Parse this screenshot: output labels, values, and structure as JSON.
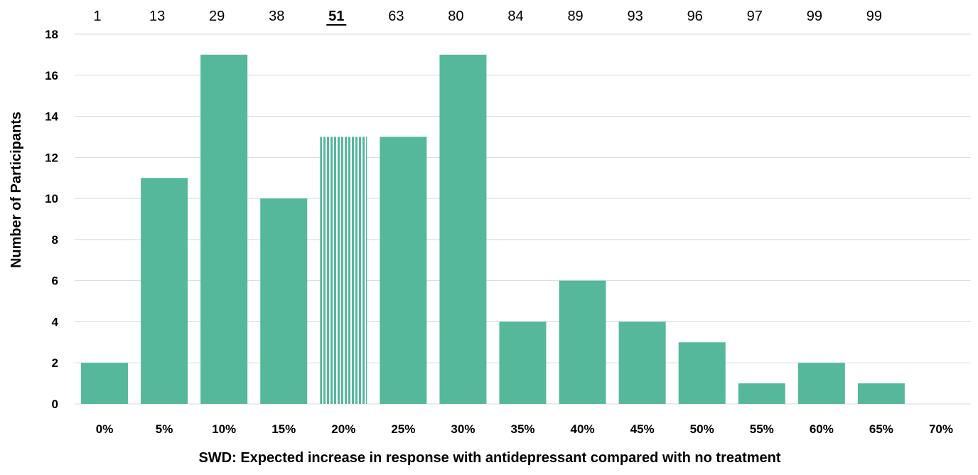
{
  "chart_data": {
    "type": "bar",
    "categories": [
      "0%",
      "5%",
      "10%",
      "15%",
      "20%",
      "25%",
      "30%",
      "35%",
      "40%",
      "45%",
      "50%",
      "55%",
      "60%",
      "65%",
      "70%"
    ],
    "values": [
      2,
      11,
      17,
      10,
      13,
      13,
      17,
      4,
      6,
      4,
      3,
      1,
      2,
      1,
      0
    ],
    "top_labels": [
      "1",
      "13",
      "29",
      "38",
      "51",
      "63",
      "80",
      "84",
      "89",
      "93",
      "96",
      "97",
      "99",
      "99"
    ],
    "highlight_index": 4,
    "title": "",
    "xlabel": "SWD: Expected increase in response with antidepressant compared with no treatment",
    "ylabel": "Number of Participants",
    "ylim": [
      0,
      18
    ],
    "yticks": [
      "0",
      "2",
      "4",
      "6",
      "8",
      "10",
      "12",
      "14",
      "16",
      "18"
    ],
    "grid": true,
    "legend": "none",
    "bar_color": "#55b89b",
    "highlight_pattern": "vertical-stripes"
  }
}
